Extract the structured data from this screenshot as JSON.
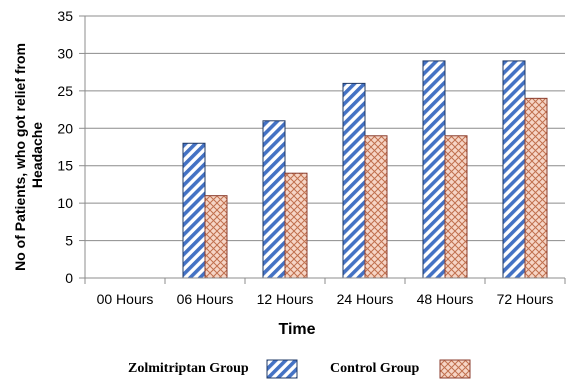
{
  "chart_data": {
    "type": "bar",
    "categories": [
      "00 Hours",
      "06 Hours",
      "12 Hours",
      "24 Hours",
      "48 Hours",
      "72 Hours"
    ],
    "series": [
      {
        "name": "Zolmitriptan Group",
        "values": [
          0,
          18,
          21,
          26,
          29,
          29
        ],
        "color": "#4472C4",
        "pattern": "diagonal-stripes"
      },
      {
        "name": "Control Group",
        "values": [
          0,
          11,
          14,
          19,
          19,
          24
        ],
        "color": "#E8A88A",
        "pattern": "crosshatch"
      }
    ],
    "xlabel": "Time",
    "ylabel": "No of Patients, who got relief from Headache",
    "ylim": [
      0,
      35
    ],
    "yticks": [
      0,
      5,
      10,
      15,
      20,
      25,
      30,
      35
    ],
    "grid": "horizontal",
    "legend_position": "bottom"
  }
}
